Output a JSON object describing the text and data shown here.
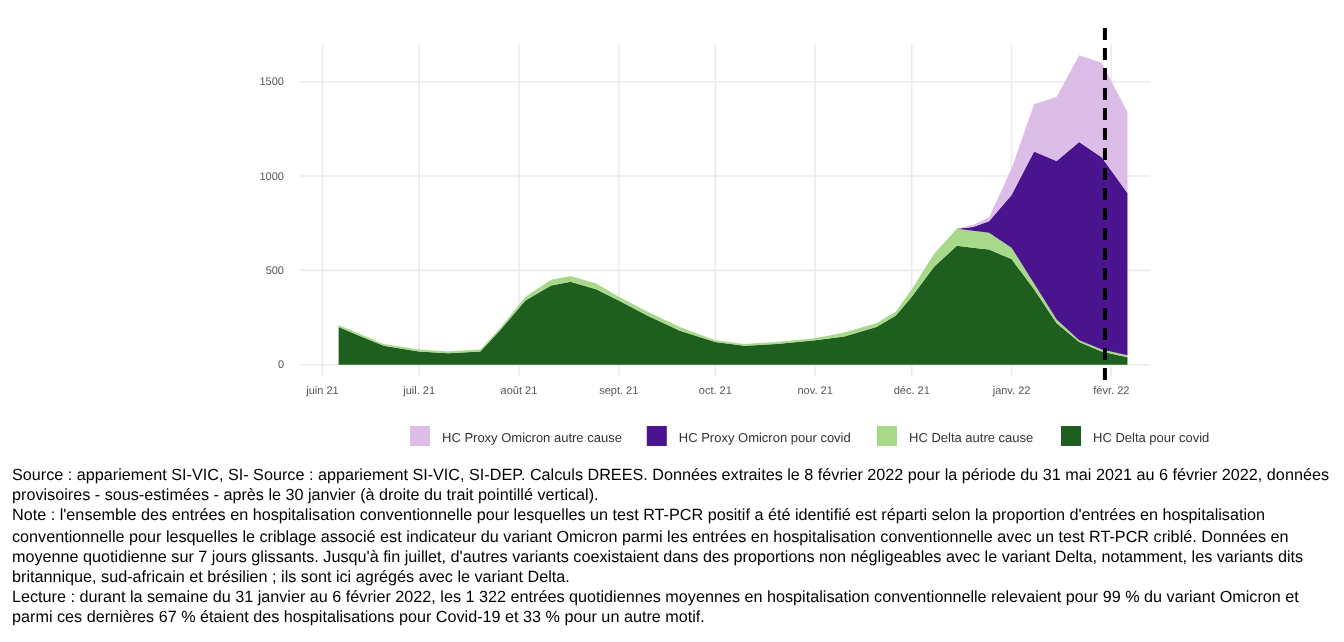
{
  "chart_data": {
    "type": "area",
    "stacked": true,
    "x": [
      "2021-06-06",
      "2021-06-13",
      "2021-06-20",
      "2021-07-01",
      "2021-07-10",
      "2021-07-20",
      "2021-07-26",
      "2021-08-03",
      "2021-08-11",
      "2021-08-17",
      "2021-08-25",
      "2021-09-01",
      "2021-09-10",
      "2021-09-20",
      "2021-10-01",
      "2021-10-10",
      "2021-10-20",
      "2021-11-01",
      "2021-11-10",
      "2021-11-20",
      "2021-11-26",
      "2021-12-01",
      "2021-12-08",
      "2021-12-15",
      "2021-12-20",
      "2021-12-25",
      "2022-01-01",
      "2022-01-08",
      "2022-01-15",
      "2022-01-22",
      "2022-01-29",
      "2022-02-06"
    ],
    "series": [
      {
        "name": "HC Delta pour covid",
        "color": "#1e5e1e",
        "values": [
          200,
          150,
          100,
          70,
          60,
          70,
          180,
          340,
          420,
          440,
          400,
          340,
          260,
          180,
          120,
          100,
          110,
          130,
          150,
          200,
          260,
          360,
          520,
          630,
          620,
          610,
          560,
          400,
          220,
          120,
          70,
          40
        ]
      },
      {
        "name": "HC Delta autre cause",
        "color": "#a8d88a",
        "values": [
          10,
          10,
          10,
          10,
          10,
          10,
          10,
          20,
          30,
          30,
          30,
          20,
          20,
          20,
          10,
          10,
          10,
          10,
          20,
          20,
          20,
          40,
          70,
          90,
          90,
          90,
          60,
          30,
          20,
          10,
          10,
          10
        ]
      },
      {
        "name": "HC Proxy Omicron pour covid",
        "color": "#4b148f",
        "values": [
          0,
          0,
          0,
          0,
          0,
          0,
          0,
          0,
          0,
          0,
          0,
          0,
          0,
          0,
          0,
          0,
          0,
          0,
          0,
          0,
          0,
          0,
          0,
          0,
          20,
          60,
          280,
          700,
          840,
          1050,
          1020,
          860
        ]
      },
      {
        "name": "HC Proxy Omicron autre cause",
        "color": "#dcbde8",
        "values": [
          0,
          0,
          0,
          0,
          0,
          0,
          0,
          0,
          0,
          0,
          0,
          0,
          0,
          0,
          0,
          0,
          0,
          0,
          0,
          0,
          0,
          0,
          0,
          0,
          10,
          20,
          140,
          250,
          340,
          460,
          500,
          430
        ]
      }
    ],
    "xlim": [
      "2021-05-25",
      "2022-02-13"
    ],
    "xticks": [
      {
        "value": "2021-06-01",
        "label": "juin 21"
      },
      {
        "value": "2021-07-01",
        "label": "juil. 21"
      },
      {
        "value": "2021-08-01",
        "label": "août 21"
      },
      {
        "value": "2021-09-01",
        "label": "sept. 21"
      },
      {
        "value": "2021-10-01",
        "label": "oct. 21"
      },
      {
        "value": "2021-11-01",
        "label": "nov. 21"
      },
      {
        "value": "2021-12-01",
        "label": "déc. 21"
      },
      {
        "value": "2022-01-01",
        "label": "janv. 22"
      },
      {
        "value": "2022-02-01",
        "label": "févr. 22"
      }
    ],
    "ylim": [
      -60,
      1700
    ],
    "yticks": [
      0,
      500,
      1000,
      1500
    ],
    "grid": true,
    "legend": "bottom",
    "ref_lines": [
      {
        "axis": "x",
        "value": "2022-01-30",
        "color": "#000000",
        "line_style": "dashed"
      }
    ],
    "annotations": [
      "Source : appariement SI-VIC, SI- Source : appariement SI-VIC, SI-DEP. Calculs DREES. Données extraites le 8 février 2022 pour la période du 31 mai 2021 au 6 février 2022, données provisoires - sous-estimées - après le 30 janvier (à droite du trait pointillé vertical).",
      "Note : l'ensemble des entrées en hospitalisation conventionnelle pour lesquelles un test RT-PCR positif a été identifié est réparti selon la proportion d'entrées en hospitalisation conventionnelle pour lesquelles le criblage associé est indicateur du variant Omicron parmi les entrées en hospitalisation conventionnelle avec un test RT-PCR criblé. Données en moyenne quotidienne sur 7 jours glissants. Jusqu'à fin juillet, d'autres variants coexistaient dans des proportions non négligeables avec le variant Delta, notamment, les variants dits britannique, sud-africain et brésilien ; ils sont ici agrégés avec le variant Delta.",
      "Lecture : durant la semaine du 31 janvier au 6 février 2022, les 1 322 entrées quotidiennes moyennes en hospitalisation conventionnelle relevaient pour 99 % du variant Omicron et parmi ces dernières 67 % étaient des hospitalisations pour Covid-19 et 33 % pour un autre motif."
    ]
  }
}
